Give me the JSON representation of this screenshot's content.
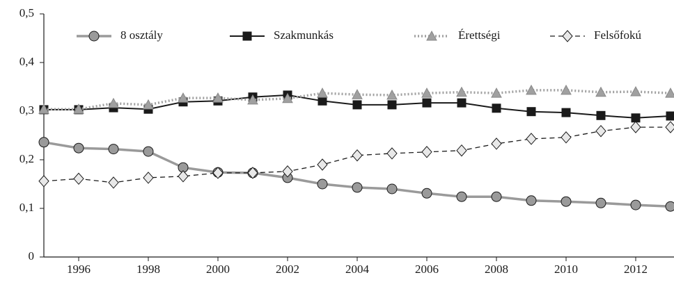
{
  "chart_data": {
    "type": "line",
    "x": [
      1995,
      1996,
      1997,
      1998,
      1999,
      2000,
      2001,
      2002,
      2003,
      2004,
      2005,
      2006,
      2007,
      2008,
      2009,
      2010,
      2011,
      2012,
      2013
    ],
    "series": [
      {
        "name": "8 osztály",
        "color": "#9a9a9a",
        "marker": "circle",
        "dash": "solid",
        "values": [
          0.236,
          0.224,
          0.222,
          0.217,
          0.184,
          0.174,
          0.173,
          0.163,
          0.15,
          0.143,
          0.14,
          0.131,
          0.124,
          0.124,
          0.116,
          0.114,
          0.111,
          0.107,
          0.104
        ]
      },
      {
        "name": "Szakmunkás",
        "color": "#1a1a1a",
        "marker": "square",
        "dash": "solid",
        "values": [
          0.303,
          0.303,
          0.307,
          0.304,
          0.319,
          0.321,
          0.329,
          0.333,
          0.321,
          0.313,
          0.313,
          0.317,
          0.317,
          0.306,
          0.299,
          0.297,
          0.291,
          0.286,
          0.29
        ]
      },
      {
        "name": "Érettségi",
        "color": "#a0a0a0",
        "marker": "triangle",
        "dash": "dotted",
        "values": [
          0.304,
          0.304,
          0.316,
          0.313,
          0.327,
          0.327,
          0.323,
          0.326,
          0.337,
          0.334,
          0.333,
          0.337,
          0.339,
          0.337,
          0.343,
          0.343,
          0.339,
          0.34,
          0.337
        ]
      },
      {
        "name": "Felsőfokú",
        "color": "#1a1a1a",
        "marker": "diamond",
        "dash": "dashed",
        "values": [
          0.156,
          0.161,
          0.153,
          0.163,
          0.166,
          0.173,
          0.173,
          0.176,
          0.19,
          0.209,
          0.213,
          0.216,
          0.219,
          0.233,
          0.243,
          0.246,
          0.259,
          0.267,
          0.267
        ]
      }
    ],
    "xlim": [
      1995,
      2013.1
    ],
    "xticks": [
      1996,
      1998,
      2000,
      2002,
      2004,
      2006,
      2008,
      2010,
      2012
    ],
    "ylim": [
      0,
      0.5
    ],
    "yticks": [
      0,
      {
        "value": 0.1,
        "label": "0,1"
      },
      {
        "value": 0.2,
        "label": "0,2"
      },
      {
        "value": 0.3,
        "label": "0,3"
      },
      {
        "value": 0.4,
        "label": "0,4"
      },
      {
        "value": 0.5,
        "label": "0,5"
      }
    ],
    "grid": false,
    "legend": "top"
  }
}
